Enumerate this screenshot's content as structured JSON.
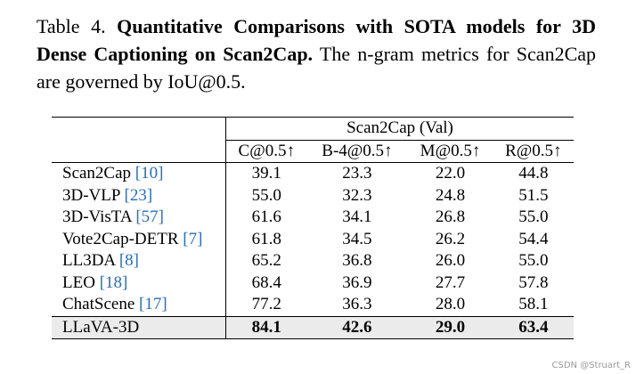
{
  "caption": {
    "label": "Table 4.",
    "bold_title": "Quantitative Comparisons with SOTA models for 3D Dense Captioning on Scan2Cap.",
    "rest": "The n-gram metrics for Scan2Cap are governed by IoU@0.5."
  },
  "table": {
    "group_header": "Scan2Cap (Val)",
    "columns": [
      "C@0.5↑",
      "B-4@0.5↑",
      "M@0.5↑",
      "R@0.5↑"
    ],
    "rows": [
      {
        "method": "Scan2Cap",
        "ref": "[10]",
        "values": [
          "39.1",
          "23.3",
          "22.0",
          "44.8"
        ]
      },
      {
        "method": "3D-VLP",
        "ref": "[23]",
        "values": [
          "55.0",
          "32.3",
          "24.8",
          "51.5"
        ]
      },
      {
        "method": "3D-VisTA",
        "ref": "[57]",
        "values": [
          "61.6",
          "34.1",
          "26.8",
          "55.0"
        ]
      },
      {
        "method": "Vote2Cap-DETR",
        "ref": "[7]",
        "values": [
          "61.8",
          "34.5",
          "26.2",
          "54.4"
        ]
      },
      {
        "method": "LL3DA",
        "ref": "[8]",
        "values": [
          "65.2",
          "36.8",
          "26.0",
          "55.0"
        ]
      },
      {
        "method": "LEO",
        "ref": "[18]",
        "values": [
          "68.4",
          "36.9",
          "27.7",
          "57.8"
        ]
      },
      {
        "method": "ChatScene",
        "ref": "[17]",
        "values": [
          "77.2",
          "36.3",
          "28.0",
          "58.1"
        ]
      }
    ],
    "highlight_row": {
      "method": "LLaVA-3D",
      "values": [
        "84.1",
        "42.6",
        "29.0",
        "63.4"
      ]
    }
  },
  "watermark": "CSDN @Struart_R"
}
